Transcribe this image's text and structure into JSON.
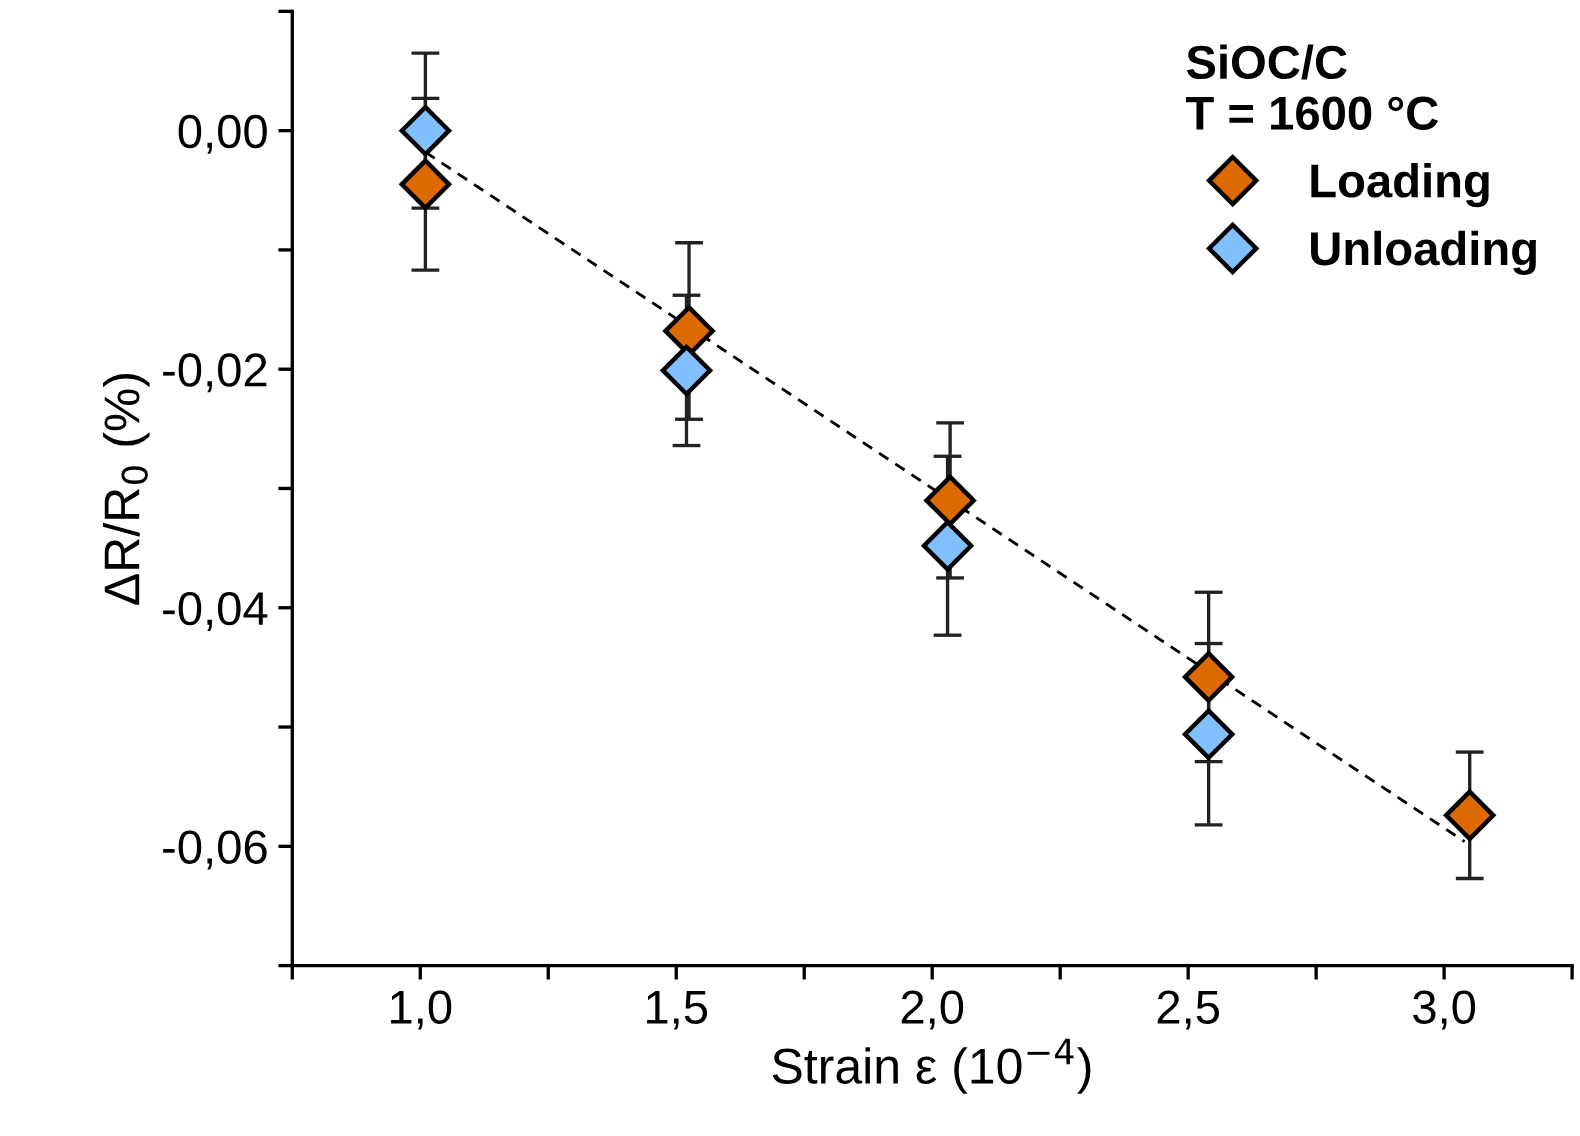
{
  "chart_data": {
    "type": "scatter",
    "xlabel": "Strain ε (10$^{−4}$)",
    "ylabel": "ΔR/R$_{0}$ (%)",
    "legend_title": "SiOC/C\nT = 1600 °C",
    "xlim": [
      0.75,
      3.25
    ],
    "ylim": [
      -0.07,
      0.01
    ],
    "xticks": [
      {
        "value": 0.75,
        "label": null
      },
      {
        "value": 1.0,
        "label": "1,0"
      },
      {
        "value": 1.25,
        "label": null
      },
      {
        "value": 1.5,
        "label": "1,5"
      },
      {
        "value": 1.75,
        "label": null
      },
      {
        "value": 2.0,
        "label": "2,0"
      },
      {
        "value": 2.25,
        "label": null
      },
      {
        "value": 2.5,
        "label": "2,5"
      },
      {
        "value": 2.75,
        "label": null
      },
      {
        "value": 3.0,
        "label": "3,0"
      },
      {
        "value": 3.25,
        "label": null
      }
    ],
    "yticks": [
      {
        "value": -0.07,
        "label": null
      },
      {
        "value": -0.06,
        "label": "-0,06"
      },
      {
        "value": -0.05,
        "label": null
      },
      {
        "value": -0.04,
        "label": "-0,04"
      },
      {
        "value": -0.03,
        "label": null
      },
      {
        "value": -0.02,
        "label": "-0,02"
      },
      {
        "value": -0.01,
        "label": null
      },
      {
        "value": 0.0,
        "label": "0,00"
      },
      {
        "value": 0.01,
        "label": null
      }
    ],
    "grid": false,
    "legend": "top right",
    "marker": "diamond",
    "series": [
      {
        "name": "Loading",
        "color": "#dd6a00",
        "x": [
          1.01,
          1.525,
          2.035,
          2.54,
          3.05
        ],
        "values": [
          -0.0045,
          -0.0168,
          -0.031,
          -0.0458,
          -0.0574
        ],
        "errors": [
          0.0072,
          0.0074,
          0.0065,
          0.0071,
          0.0053
        ]
      },
      {
        "name": "Unloading",
        "color": "#80c0ff",
        "x": [
          1.01,
          1.52,
          2.03,
          2.54
        ],
        "values": [
          0.0,
          -0.0201,
          -0.0348,
          -0.0506
        ],
        "errors": [
          0.0065,
          0.0063,
          0.0075,
          0.0076
        ]
      },
      {
        "type": "line",
        "color": "#000000",
        "line_style": "dashed",
        "marker": "none",
        "x": [
          1.01,
          3.04
        ],
        "values": [
          -0.0018,
          -0.0596
        ]
      }
    ]
  }
}
